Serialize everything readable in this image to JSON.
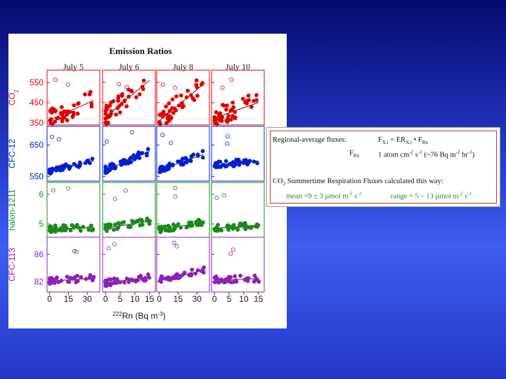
{
  "slide_background": "#2a3fd0",
  "chart_data": {
    "type": "scatter",
    "title": "Emission Ratios",
    "xlabel": "222Rn (Bq m-3)",
    "columns": [
      {
        "label": "July 5",
        "x_ticks": [
          0,
          15,
          30
        ],
        "xlim": [
          -2,
          40
        ]
      },
      {
        "label": "July 6",
        "x_ticks": [
          0,
          5,
          10,
          15
        ],
        "xlim": [
          -1,
          17
        ]
      },
      {
        "label": "July 8",
        "x_ticks": [
          0,
          15,
          30
        ],
        "xlim": [
          -2,
          40
        ]
      },
      {
        "label": "July 10",
        "x_ticks": [
          0,
          5,
          10,
          15
        ],
        "xlim": [
          -1,
          17
        ]
      }
    ],
    "rows": [
      {
        "ylabel": "CO2",
        "color": "#e00000",
        "y_ticks": [
          350,
          450,
          550
        ],
        "ylim": [
          340,
          610
        ]
      },
      {
        "ylabel": "CFC-12",
        "color": "#0020d0",
        "y_ticks": [
          550,
          650
        ],
        "ylim": [
          535,
          710
        ]
      },
      {
        "ylabel": "halon-1211",
        "color": "#1a8a1a",
        "y_ticks": [
          5,
          6
        ],
        "ylim": [
          4.55,
          6.4
        ]
      },
      {
        "ylabel": "CFC-113",
        "color": "#8a22b8",
        "y_ticks": [
          82,
          86
        ],
        "ylim": [
          80.5,
          88.5
        ]
      }
    ],
    "fit_lines": [
      [
        [
          [
            0,
            365
          ],
          [
            35,
            460
          ]
        ],
        [
          [
            0,
            380
          ],
          [
            15,
            560
          ]
        ],
        [
          [
            0,
            360
          ],
          [
            35,
            540
          ]
        ],
        [
          [
            0,
            375
          ],
          [
            15,
            450
          ]
        ]
      ],
      [
        [
          [
            0,
            565
          ],
          [
            35,
            600
          ]
        ],
        [
          [
            0,
            570
          ],
          [
            15,
            630
          ]
        ],
        [
          [
            0,
            570
          ],
          [
            35,
            620
          ]
        ],
        [
          [
            0,
            585
          ],
          [
            15,
            600
          ]
        ]
      ],
      [
        [
          [
            0,
            4.82
          ],
          [
            35,
            4.88
          ]
        ],
        [
          [
            0,
            4.85
          ],
          [
            15,
            5.1
          ]
        ],
        [
          [
            0,
            4.8
          ],
          [
            35,
            5.05
          ]
        ],
        [
          [
            0,
            4.85
          ],
          [
            15,
            4.95
          ]
        ]
      ],
      [
        [
          [
            0,
            82.1
          ],
          [
            35,
            82.5
          ]
        ],
        [
          [
            0,
            81.8
          ],
          [
            15,
            82.7
          ]
        ],
        [
          [
            0,
            82.2
          ],
          [
            35,
            83.6
          ]
        ],
        [
          [
            0,
            82.3
          ],
          [
            15,
            82.4
          ]
        ]
      ]
    ]
  },
  "info_box": {
    "line1_label": "Regional-average fluxes:",
    "line1_formula": "F",
    "line1_sub1": "X,i",
    "line1_eq": " = ER",
    "line1_sub2": "X,i",
    "line1_dot": " • F",
    "line1_sub3": "Rn",
    "line2_lhs": "F",
    "line2_lhs_sub": "Rn",
    "line2_a": "1 atom cm",
    "line2_sup1": "-2",
    "line2_b": " s",
    "line2_sup2": "-1",
    "line2_c": "   (~76 Bq m",
    "line2_sup3": "-2",
    "line2_d": " hr",
    "line2_sup4": "-1",
    "line2_e": ")",
    "line3_a": "CO",
    "line3_sub": "2",
    "line3_b": " Summertime Respiration Fluxes calculated this way:",
    "line4_a": "mean =9 ± 3 µmol m",
    "line4_sup1": "-2",
    "line4_b": " s",
    "line4_sup2": "-1",
    "line4_c": "range = 5 – 13 µmol m",
    "line4_sup3": "-2",
    "line4_d": " s",
    "line4_sup4": "-1"
  }
}
